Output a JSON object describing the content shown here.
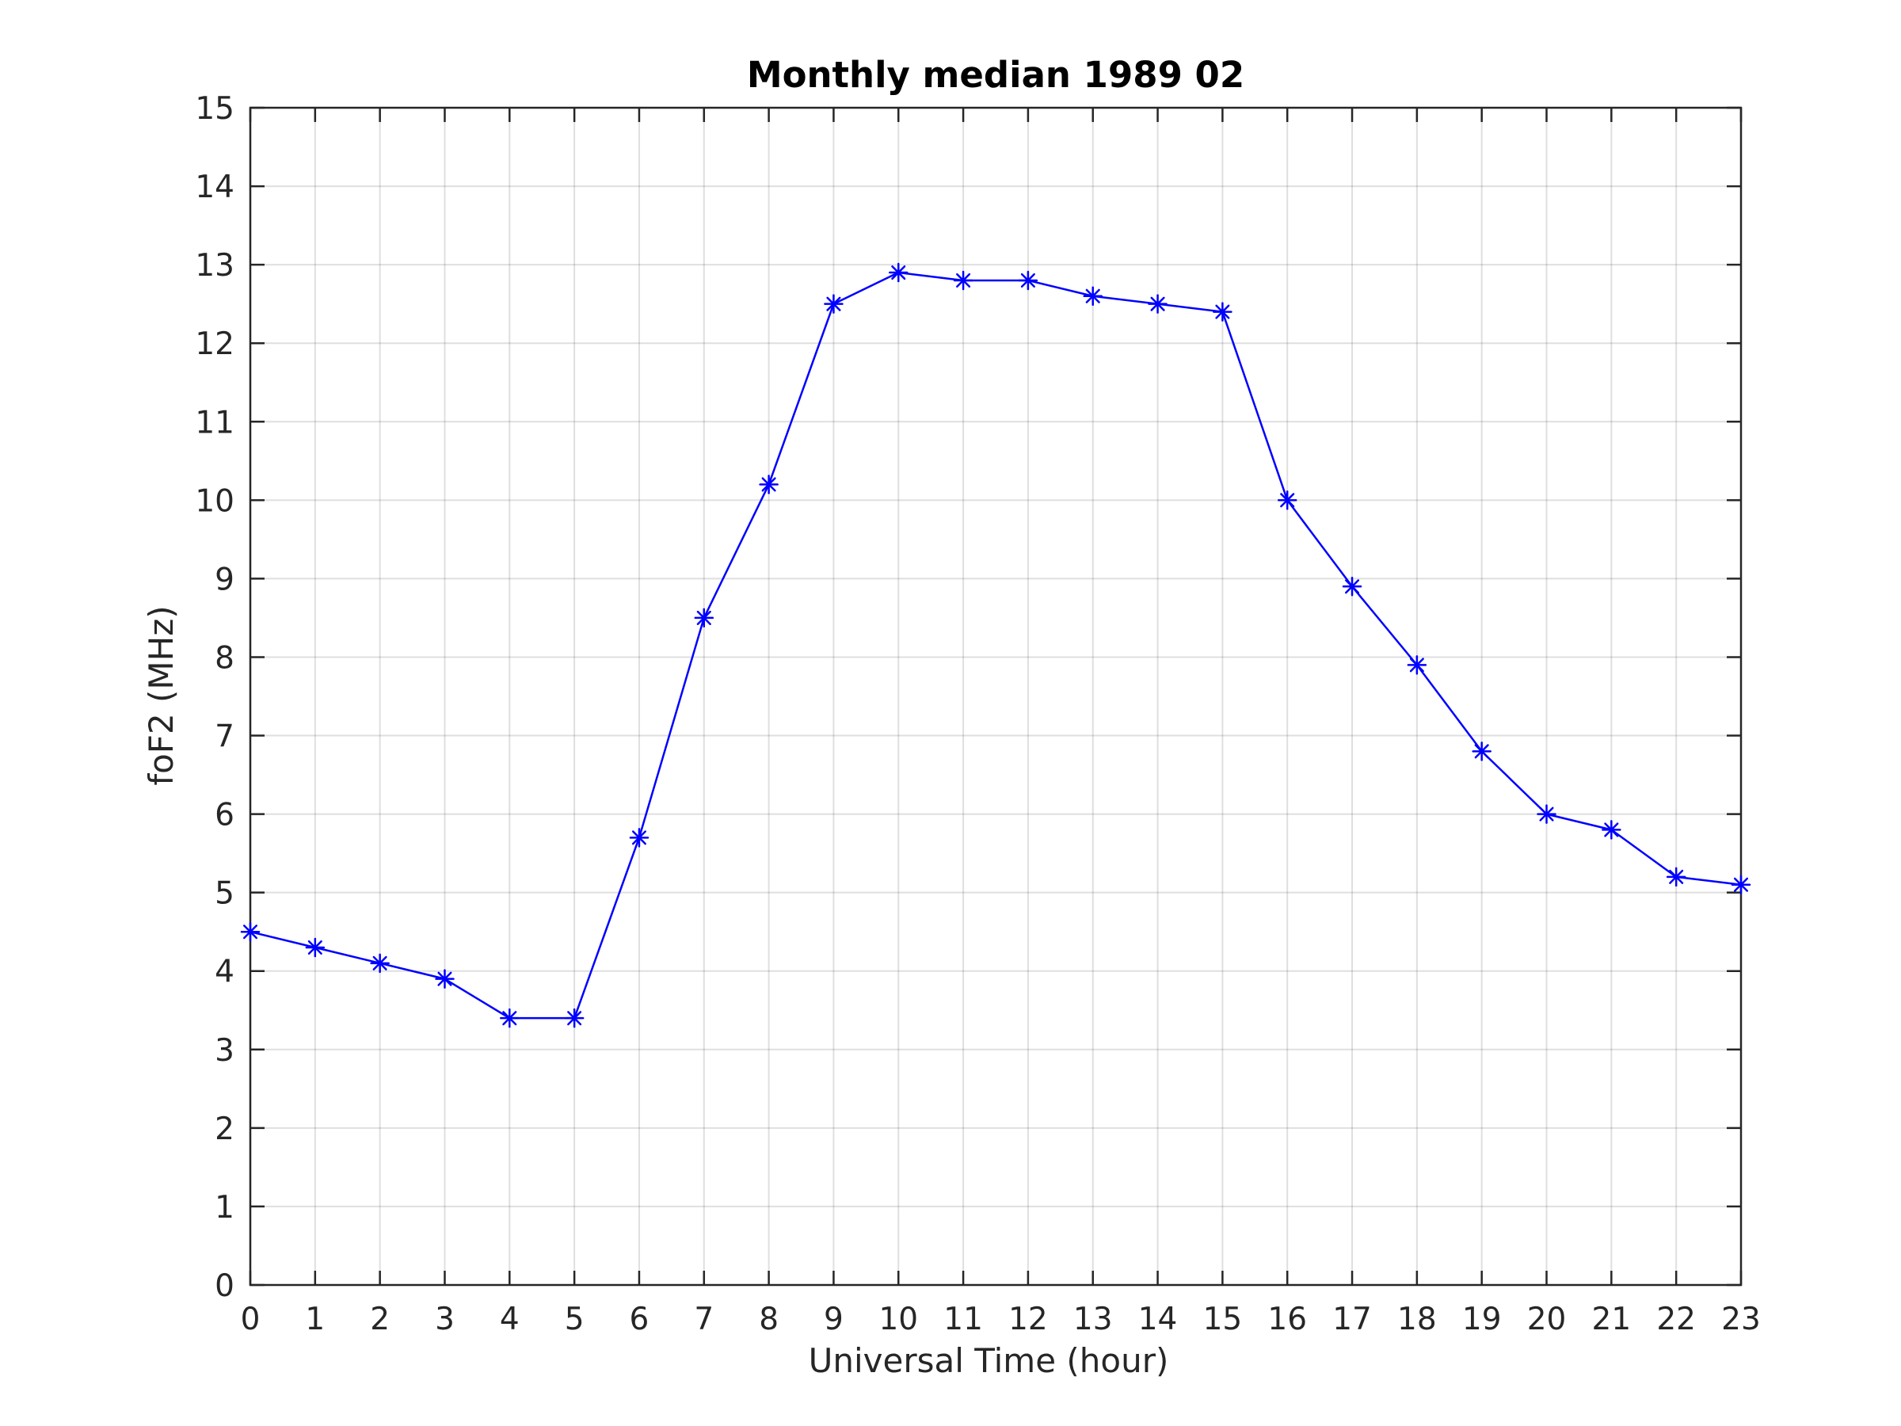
{
  "chart_data": {
    "type": "line",
    "title": "Monthly median 1989 02",
    "xlabel": "Universal Time (hour)",
    "ylabel": "foF2 (MHz)",
    "xlim": [
      0,
      23
    ],
    "ylim": [
      0,
      15
    ],
    "grid": true,
    "x_ticks": [
      "0",
      "1",
      "2",
      "3",
      "4",
      "5",
      "6",
      "7",
      "8",
      "9",
      "10",
      "11",
      "12",
      "13",
      "14",
      "15",
      "16",
      "17",
      "18",
      "19",
      "20",
      "21",
      "22",
      "23"
    ],
    "y_ticks": [
      "0",
      "1",
      "2",
      "3",
      "4",
      "5",
      "6",
      "7",
      "8",
      "9",
      "10",
      "11",
      "12",
      "13",
      "14",
      "15"
    ],
    "series": [
      {
        "x": [
          0,
          1,
          2,
          3,
          4,
          5,
          6,
          7,
          8,
          9,
          10,
          11,
          12,
          13,
          14,
          15,
          16,
          17,
          18,
          19,
          20,
          21,
          22,
          23
        ],
        "values": [
          4.5,
          4.3,
          4.1,
          3.9,
          3.4,
          3.4,
          5.7,
          8.5,
          10.2,
          12.5,
          12.9,
          12.8,
          12.8,
          12.6,
          12.5,
          12.4,
          10.0,
          8.9,
          7.9,
          6.8,
          6.0,
          5.8,
          5.2,
          5.1
        ],
        "color": "#0000ff",
        "marker": "asterisk"
      }
    ]
  }
}
